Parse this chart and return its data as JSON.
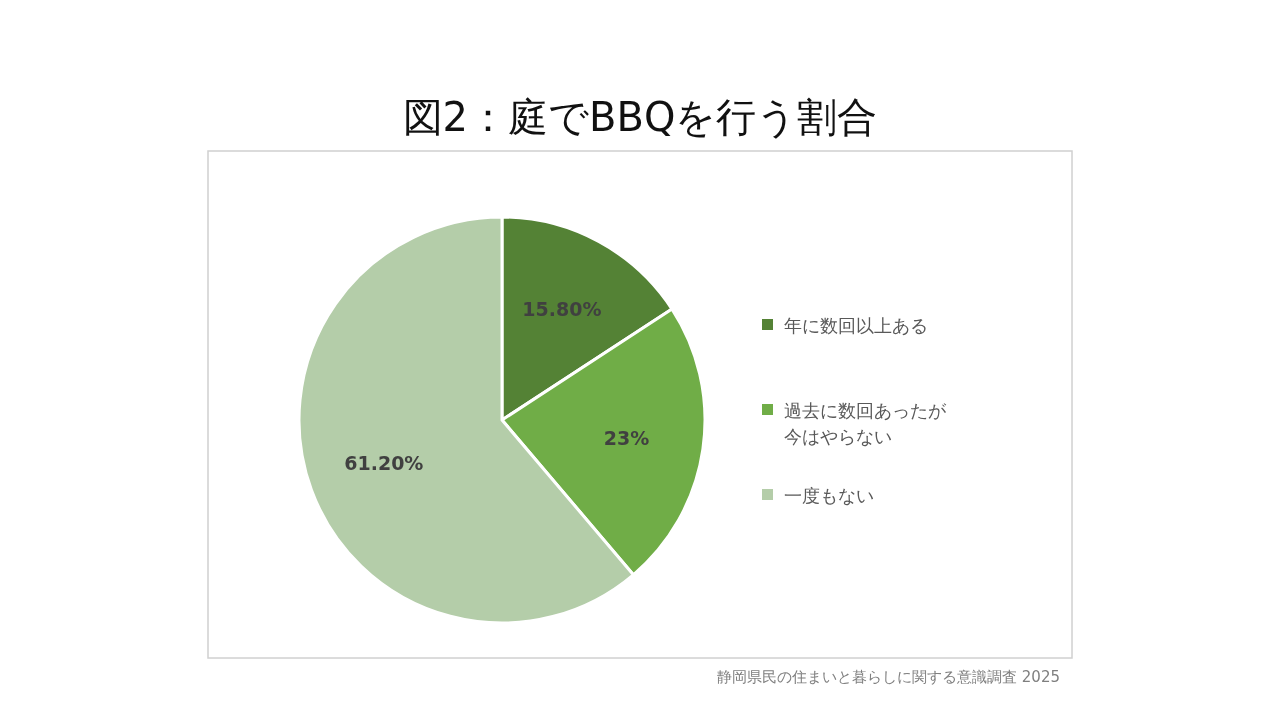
{
  "chart_data": {
    "type": "pie",
    "title": "図2：庭でBBQを行う割合",
    "categories": [
      "年に数回以上ある",
      "過去に数回あったが今はやらない",
      "一度もない"
    ],
    "values": [
      15.8,
      23,
      61.2
    ],
    "value_labels": [
      "15.80%",
      "23%",
      "61.20%"
    ],
    "colors": [
      "#548235",
      "#70ad47",
      "#b4cda9"
    ],
    "legend": "right",
    "annotations": [
      "静岡県民の住まいと暮らしに関する意識調査 2025"
    ]
  }
}
